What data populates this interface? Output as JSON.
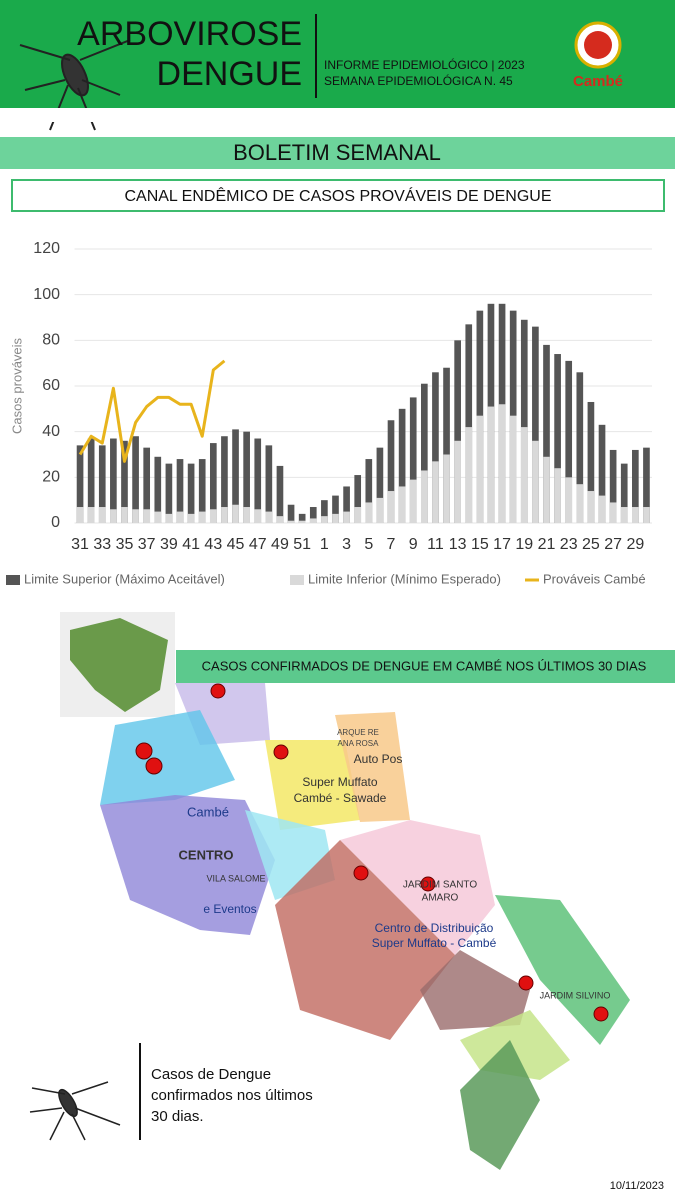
{
  "header": {
    "title_line1": "ARBOVIROSE",
    "title_line2": "DENGUE",
    "subtitle_line1": "INFORME EPIDEMIOLÓGICO | 2023",
    "subtitle_line2": "SEMANA EPIDEMIOLÓGICA  N. 45",
    "logo": "Cambé"
  },
  "section_title": "BOLETIM SEMANAL",
  "chart_data": {
    "type": "bar",
    "title": "CANAL ENDÊMICO DE CASOS PROVÁVEIS DE DENGUE",
    "y_label": "Casos prováveis",
    "categories": [
      "31",
      null,
      "33",
      null,
      "35",
      null,
      "37",
      null,
      "39",
      null,
      "41",
      null,
      "43",
      null,
      "45",
      null,
      "47",
      null,
      "49",
      null,
      "51",
      null,
      "1",
      null,
      "3",
      null,
      "5",
      null,
      "7",
      null,
      "9",
      null,
      "11",
      null,
      "13",
      null,
      "15",
      null,
      "17",
      null,
      "19",
      null,
      "21",
      null,
      "23",
      null,
      "25",
      null,
      "27",
      null,
      "29",
      null
    ],
    "series": [
      {
        "name": "Limite Superior (Máximo Aceitável)",
        "type": "bar",
        "color": "#555555",
        "values": [
          34,
          37,
          34,
          37,
          36,
          38,
          33,
          29,
          26,
          28,
          26,
          28,
          35,
          38,
          41,
          40,
          37,
          34,
          25,
          8,
          4,
          7,
          10,
          12,
          16,
          21,
          28,
          33,
          45,
          50,
          55,
          61,
          66,
          68,
          80,
          87,
          93,
          96,
          96,
          93,
          89,
          86,
          78,
          74,
          71,
          66,
          53,
          43,
          32,
          26,
          32,
          33
        ]
      },
      {
        "name": "Limite Inferior (Mínimo Esperado)",
        "type": "bar",
        "color": "#d9d9d9",
        "values": [
          7,
          7,
          7,
          6,
          7,
          6,
          6,
          5,
          4,
          5,
          4,
          5,
          6,
          7,
          8,
          7,
          6,
          5,
          3,
          1,
          1,
          2,
          3,
          4,
          5,
          7,
          9,
          11,
          14,
          16,
          19,
          23,
          27,
          30,
          36,
          42,
          47,
          51,
          52,
          47,
          42,
          36,
          29,
          24,
          20,
          17,
          14,
          12,
          9,
          7,
          7,
          7
        ]
      },
      {
        "name": "Prováveis Cambé",
        "type": "line",
        "color": "#e8b41c",
        "values": [
          30,
          38,
          35,
          59,
          27,
          44,
          51,
          55,
          55,
          52,
          52,
          38,
          67,
          71,
          null,
          null,
          null,
          null,
          null,
          null,
          null,
          null,
          null,
          null,
          null,
          null,
          null,
          null,
          null,
          null,
          null,
          null,
          null,
          null,
          null,
          null,
          null,
          null,
          null,
          null,
          null,
          null,
          null,
          null,
          null,
          null,
          null,
          null,
          null,
          null,
          null,
          null
        ]
      }
    ],
    "ylim": [
      0,
      120
    ],
    "yticks": [
      0,
      20,
      40,
      60,
      80,
      100,
      120
    ],
    "grid": true,
    "legend": "bottom"
  },
  "map": {
    "title": "CASOS CONFIRMADOS DE DENGUE EM CAMBÉ NOS ÚLTIMOS 30 DIAS",
    "labels": [
      "Cambé",
      "CENTRO",
      "VILA SALOME",
      "e Eventos",
      "Super Muffato",
      "Cambé - Sawade",
      "ARQUE RE",
      "ANA ROSA",
      "Auto Pos",
      "JARDIM SANTO",
      "AMARO",
      "Centro de Distribuição",
      "Super Muffato - Cambé",
      "JARDIM SILVINO"
    ]
  },
  "caption": [
    "Casos de Dengue",
    "confirmados nos últimos",
    "30 dias."
  ],
  "date": "10/11/2023"
}
